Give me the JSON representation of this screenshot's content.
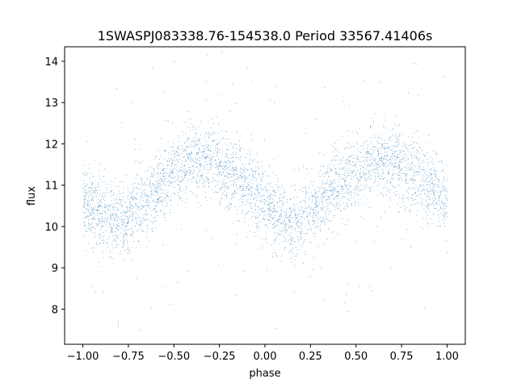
{
  "chart_data": {
    "type": "scatter",
    "title": "1SWASPJ083338.76-154538.0 Period 33567.41406s",
    "xlabel": "phase",
    "ylabel": "flux",
    "xlim": [
      -1.1,
      1.1
    ],
    "ylim": [
      7.15,
      14.35
    ],
    "xticks": [
      -1.0,
      -0.75,
      -0.5,
      -0.25,
      0.0,
      0.25,
      0.5,
      0.75,
      1.0
    ],
    "xtick_labels": [
      "−1.00",
      "−0.75",
      "−0.50",
      "−0.25",
      "0.00",
      "0.25",
      "0.50",
      "0.75",
      "1.00"
    ],
    "yticks": [
      8,
      9,
      10,
      11,
      12,
      13,
      14
    ],
    "ytick_labels": [
      "8",
      "9",
      "10",
      "11",
      "12",
      "13",
      "14"
    ],
    "grid": false,
    "point_color": "#1f77b4",
    "series": [
      {
        "description_values": "phase-folded light curve, sinusoidal with two cycles over phase -1 to 1",
        "trend_x": [
          -1.0,
          -0.9,
          -0.8,
          -0.7,
          -0.6,
          -0.5,
          -0.4,
          -0.3,
          -0.2,
          -0.1,
          0.0,
          0.1,
          0.15,
          0.2,
          0.3,
          0.4,
          0.5,
          0.6,
          0.7,
          0.8,
          0.9,
          1.0
        ],
        "trend_y": [
          10.6,
          10.3,
          10.1,
          10.5,
          10.9,
          11.3,
          11.6,
          11.6,
          11.3,
          11.0,
          10.6,
          10.1,
          10.0,
          10.2,
          10.6,
          11.0,
          11.3,
          11.6,
          11.6,
          11.3,
          11.0,
          10.6
        ],
        "scatter_sigma": 0.45
      }
    ]
  }
}
